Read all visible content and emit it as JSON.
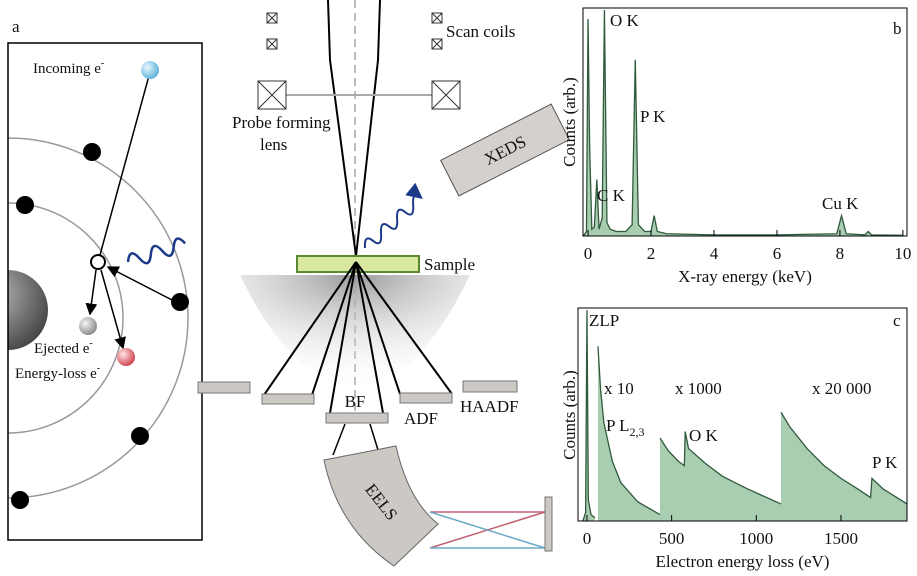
{
  "diagram": {
    "panel": "a",
    "incoming": "Incoming e",
    "ejected": "Ejected e",
    "energy_loss": "Energy-loss e",
    "electron_sup": "-",
    "scan_coils": "Scan coils",
    "lens": [
      "Probe forming",
      "lens"
    ],
    "xeds": "XEDS",
    "sample": "Sample",
    "detectors": [
      "BF",
      "ADF",
      "HAADF"
    ],
    "eels": "EELS"
  },
  "chart_data": [
    {
      "type": "area",
      "panel": "b",
      "xlabel": "X-ray energy (keV)",
      "ylabel": "Counts (arb.)",
      "x": [
        -0.15,
        -0.05,
        0,
        0.05,
        0.12,
        0.2,
        0.28,
        0.35,
        0.45,
        0.52,
        0.6,
        0.7,
        0.9,
        1.2,
        1.4,
        1.5,
        1.6,
        1.8,
        2.0,
        2.1,
        2.2,
        2.5,
        4,
        6,
        7.9,
        8.05,
        8.2,
        8.8,
        8.9,
        9.0,
        10
      ],
      "values": [
        0,
        2,
        96,
        40,
        3,
        4,
        25,
        3,
        8,
        100,
        6,
        3,
        2,
        2,
        5,
        78,
        5,
        2,
        2,
        9,
        2,
        1,
        0.5,
        0.5,
        1,
        9,
        1,
        0.5,
        2,
        0.5,
        0.3
      ],
      "xlim": [
        -0.16,
        10.13
      ],
      "ylim": [
        0,
        100
      ],
      "xticks": [
        0,
        2,
        4,
        6,
        8,
        10
      ],
      "color": "#a9cdb0",
      "edgecolor": "#2f5a3c",
      "annotations": [
        "O K",
        "P K",
        "C K",
        "Cu K"
      ]
    },
    {
      "type": "area",
      "panel": "c",
      "xlabel": "Electron energy loss (eV)",
      "ylabel": "Counts (arb.)",
      "x": [
        -24,
        -8,
        0,
        8,
        24,
        47,
        56,
        65,
        80,
        100,
        150,
        200,
        300,
        431,
        431,
        431,
        480,
        540,
        575,
        580,
        600,
        700,
        800,
        950,
        1146,
        1146,
        1146,
        1200,
        1300,
        1400,
        1500,
        1600,
        1675,
        1683,
        1750,
        1890
      ],
      "values": [
        0,
        4,
        99,
        10,
        3,
        1.5,
        null,
        82,
        62,
        46,
        28,
        18,
        9,
        3,
        null,
        39,
        33,
        28,
        26,
        42,
        34,
        27,
        21,
        15,
        8,
        null,
        51,
        44,
        34,
        26,
        20,
        15,
        11,
        20,
        15,
        8
      ],
      "xlim": [
        -53,
        1890
      ],
      "ylim": [
        0,
        100
      ],
      "xticks": [
        0,
        500,
        1000,
        1500
      ],
      "color": "#a9cdb0",
      "edgecolor": "#2f5a3c",
      "annotations": [
        "ZLP",
        "x 10",
        "x 1000",
        "O K",
        "x 20 000",
        "P K"
      ],
      "subscript_label": {
        "text": "P L",
        "sub": "2,3"
      }
    }
  ]
}
